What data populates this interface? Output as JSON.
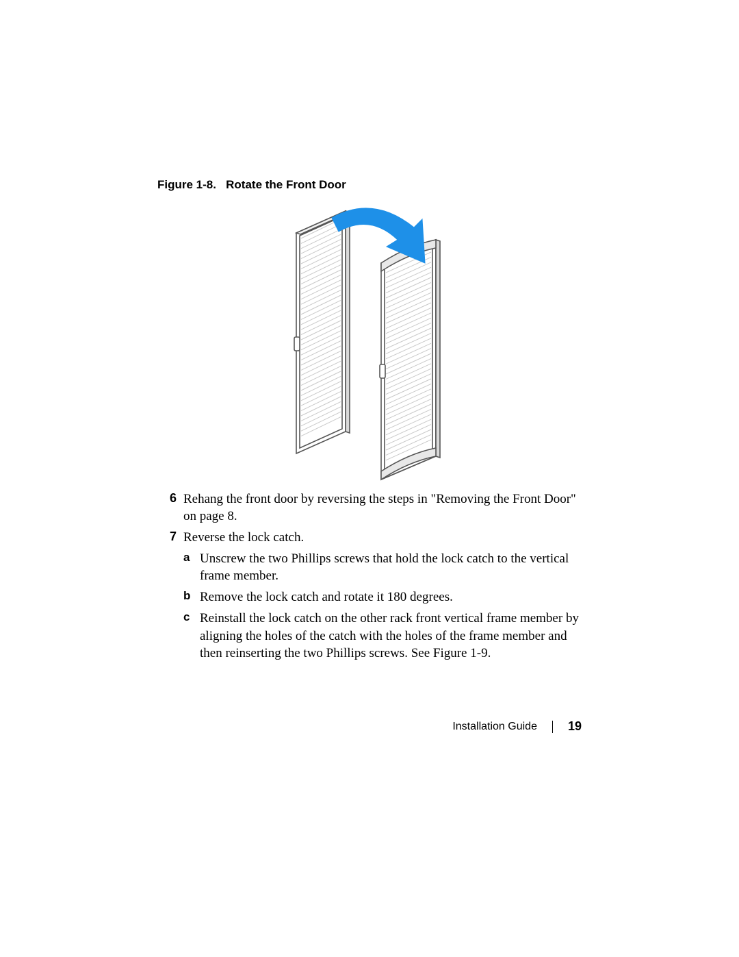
{
  "figure": {
    "label": "Figure 1-8.",
    "title": "Rotate the Front Door",
    "arrow_color": "#1e90e8",
    "door_stroke": "#565656",
    "louver_fill": "#ededed"
  },
  "steps": [
    {
      "num": "6",
      "text": "Rehang the front door by reversing the steps in \"Removing the Front Door\" on page 8."
    },
    {
      "num": "7",
      "text": "Reverse the lock catch.",
      "substeps": [
        {
          "label": "a",
          "text": "Unscrew the two Phillips screws that hold the lock catch to the vertical frame member."
        },
        {
          "label": "b",
          "text": "Remove the lock catch and rotate it 180 degrees."
        },
        {
          "label": "c",
          "text": "Reinstall the lock catch on the other rack front vertical frame member by aligning the holes of the catch with the holes of the frame member and then reinserting the two Phillips screws. See Figure 1-9."
        }
      ]
    }
  ],
  "footer": {
    "doc_title": "Installation Guide",
    "page_number": "19"
  }
}
